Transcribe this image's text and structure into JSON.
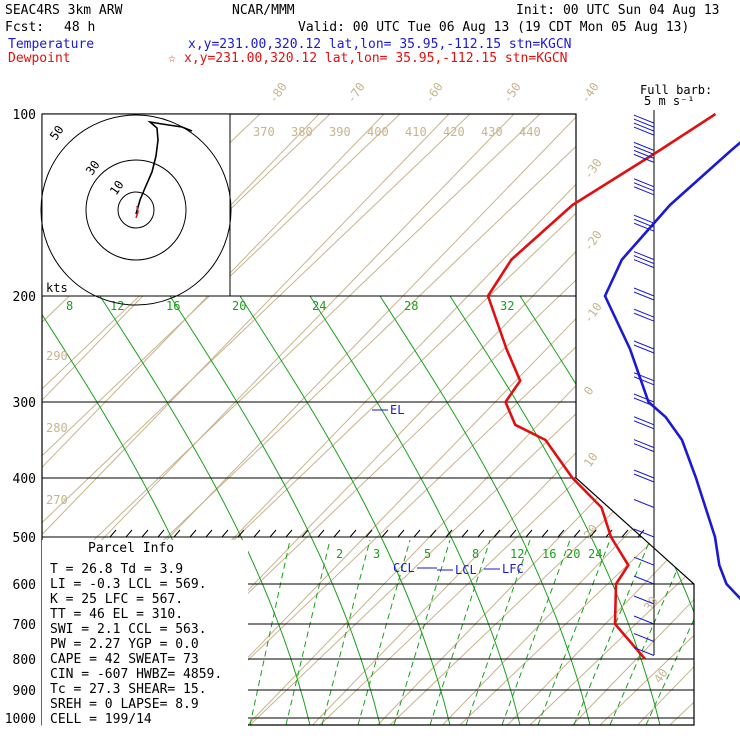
{
  "header": {
    "model": "SEAC4RS  3km ARW",
    "org": "NCAR/MMM",
    "init": "Init: 00 UTC Sun 04 Aug 13",
    "fcst_label": "Fcst:",
    "fcst_value": "48 h",
    "valid": "Valid: 00 UTC Tue 06 Aug 13 (19 CDT Mon 05 Aug 13)",
    "temp_label": "Temperature",
    "temp_loc": "x,y=231.00,320.12   lat,lon= 35.95,-112.15  stn=KGCN",
    "dew_label": "Dewpoint",
    "dew_star": "☆",
    "dew_loc": "x,y=231.00,320.12   lat,lon= 35.95,-112.15  stn=KGCN"
  },
  "colors": {
    "temperature": "#1a1ad2",
    "dewpoint": "#e01010",
    "isotherm": "#c8b48c",
    "mixing_ratio": "#1aa01a",
    "isobar": "#000000"
  },
  "wind_legend": {
    "line1": "Full barb:",
    "line2": "5 m s⁻¹"
  },
  "hodograph": {
    "units": "kts",
    "ring_labels": [
      "10",
      "30",
      "50"
    ]
  },
  "parcel": {
    "title": "Parcel Info",
    "rows": [
      [
        "T   =   26.8 Td =   3.9"
      ],
      [
        "LI  =   -0.3 LCL =  569."
      ],
      [
        "K   =     25 LFC =  567."
      ],
      [
        "TT  =     46 EL  =  310."
      ],
      [
        "SWI =    2.1 CCL =  563."
      ],
      [
        "PW  =   2.27 YGP =   0.0"
      ],
      [
        "CAPE =    42 SWEAT=   73"
      ],
      [
        "CIN =   -607 HWBZ= 4859."
      ],
      [
        "Tc  =   27.3 SHEAR=  15."
      ],
      [
        "SREH =     0 LAPSE=  8.9"
      ],
      [
        "CELL = 199/14"
      ]
    ]
  },
  "chart_data": {
    "type": "skew-t",
    "pressure_ticks": [
      100,
      200,
      300,
      400,
      500,
      600,
      700,
      800,
      900,
      1000
    ],
    "pressure_tick_labels": [
      "100",
      "200",
      "300",
      "400",
      "500",
      "600",
      "700",
      "800",
      "900",
      "1000"
    ],
    "isotherm_labels_top": [
      "-80",
      "-70",
      "-60",
      "-50",
      "-40"
    ],
    "isotherm_labels_right": [
      "-30",
      "-20",
      "-10",
      "0",
      "10",
      "20",
      "30",
      "40"
    ],
    "theta_labels_top": [
      "370",
      "380",
      "390",
      "400",
      "410",
      "420",
      "430",
      "440"
    ],
    "theta_labels_left": [
      "290",
      "280",
      "270"
    ],
    "mixing_ratio_labels_200": [
      "8",
      "12",
      "16",
      "20",
      "24",
      "28",
      "32"
    ],
    "mixing_ratio_labels_lower": [
      "2",
      "3",
      "5",
      "8",
      "12",
      "16",
      "20",
      "24"
    ],
    "series": [
      {
        "name": "Temperature",
        "points": [
          [
            100,
            -60
          ],
          [
            120,
            -61
          ],
          [
            150,
            -62
          ],
          [
            180,
            -61
          ],
          [
            200,
            -58
          ],
          [
            250,
            -46
          ],
          [
            300,
            -35
          ],
          [
            320,
            -30
          ],
          [
            350,
            -24
          ],
          [
            400,
            -16
          ],
          [
            450,
            -10
          ],
          [
            500,
            -4
          ],
          [
            560,
            1
          ],
          [
            600,
            5
          ],
          [
            650,
            11
          ],
          [
            700,
            17
          ],
          [
            750,
            22
          ],
          [
            800,
            27
          ]
        ]
      },
      {
        "name": "Dewpoint",
        "points": [
          [
            100,
            -69
          ],
          [
            120,
            -72
          ],
          [
            150,
            -77
          ],
          [
            180,
            -78
          ],
          [
            200,
            -76
          ],
          [
            250,
            -65
          ],
          [
            280,
            -58
          ],
          [
            300,
            -57
          ],
          [
            330,
            -52
          ],
          [
            350,
            -45
          ],
          [
            400,
            -35
          ],
          [
            450,
            -26
          ],
          [
            500,
            -20
          ],
          [
            560,
            -13
          ],
          [
            600,
            -12
          ],
          [
            650,
            -9
          ],
          [
            700,
            -6
          ],
          [
            800,
            4
          ]
        ]
      }
    ],
    "annotations": [
      {
        "text": "EL",
        "p": 310
      },
      {
        "text": "CCL",
        "p": 563
      },
      {
        "text": "LCL",
        "p": 569
      },
      {
        "text": "LFC",
        "p": 567
      }
    ],
    "wind_barbs": [
      [
        105,
        45
      ],
      [
        120,
        38
      ],
      [
        140,
        32
      ],
      [
        160,
        30
      ],
      [
        180,
        28
      ],
      [
        200,
        24
      ],
      [
        220,
        20
      ],
      [
        250,
        18
      ],
      [
        280,
        18
      ],
      [
        300,
        20
      ],
      [
        330,
        20
      ],
      [
        360,
        18
      ],
      [
        400,
        16
      ],
      [
        450,
        12
      ],
      [
        500,
        8
      ],
      [
        560,
        5
      ],
      [
        600,
        6
      ],
      [
        650,
        8
      ],
      [
        700,
        10
      ],
      [
        750,
        8
      ],
      [
        790,
        5
      ]
    ]
  }
}
